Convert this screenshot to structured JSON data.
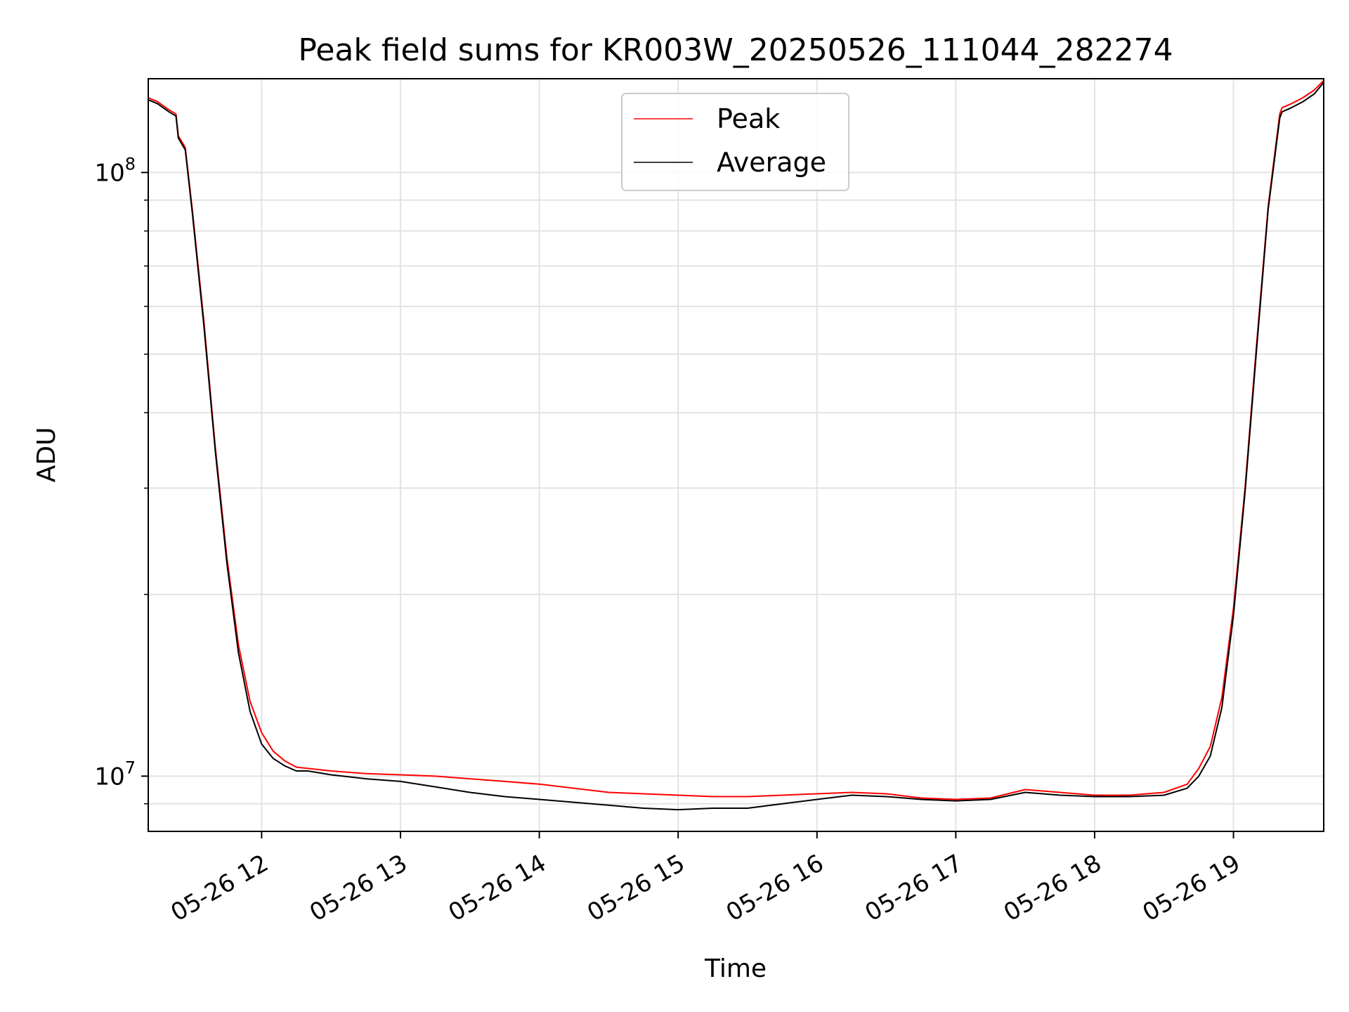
{
  "chart_data": {
    "type": "line",
    "title": "Peak field sums for KR003W_20250526_111044_282274",
    "xlabel": "Time",
    "ylabel": "ADU",
    "y_scale": "log",
    "ylim": [
      8100000,
      143000000
    ],
    "x_start": "2025-05-26 11:11",
    "x_end": "2025-05-26 19:39",
    "x_tick_labels": [
      "05-26 12",
      "05-26 13",
      "05-26 14",
      "05-26 15",
      "05-26 16",
      "05-26 17",
      "05-26 18",
      "05-26 19"
    ],
    "x_tick_times": [
      "2025-05-26 12:00",
      "2025-05-26 13:00",
      "2025-05-26 14:00",
      "2025-05-26 15:00",
      "2025-05-26 16:00",
      "2025-05-26 17:00",
      "2025-05-26 18:00",
      "2025-05-26 19:00"
    ],
    "y_tick_labels": [
      {
        "value": 10000000,
        "base": "10",
        "exp": "7"
      },
      {
        "value": 100000000,
        "base": "10",
        "exp": "8"
      }
    ],
    "grid": true,
    "legend_position": "top-center",
    "series": [
      {
        "name": "Peak",
        "color": "#ff0000",
        "x": [
          "11:11",
          "11:15",
          "11:20",
          "11:23",
          "11:24",
          "11:27",
          "11:30",
          "11:35",
          "11:40",
          "11:45",
          "11:50",
          "11:55",
          "12:00",
          "12:05",
          "12:10",
          "12:15",
          "12:20",
          "12:30",
          "12:45",
          "13:00",
          "13:15",
          "13:30",
          "13:45",
          "14:00",
          "14:15",
          "14:30",
          "14:45",
          "15:00",
          "15:15",
          "15:30",
          "15:45",
          "16:00",
          "16:15",
          "16:30",
          "16:45",
          "17:00",
          "17:15",
          "17:30",
          "17:45",
          "18:00",
          "18:15",
          "18:30",
          "18:40",
          "18:45",
          "18:50",
          "18:55",
          "19:00",
          "19:05",
          "19:10",
          "19:15",
          "19:20",
          "19:21",
          "19:25",
          "19:30",
          "19:35",
          "19:39"
        ],
        "y": [
          133000000,
          131000000,
          127000000,
          125000000,
          115000000,
          110000000,
          87000000,
          57000000,
          35000000,
          23000000,
          16500000,
          13300000,
          11800000,
          11000000,
          10600000,
          10350000,
          10300000,
          10200000,
          10100000,
          10050000,
          10000000,
          9900000,
          9800000,
          9700000,
          9550000,
          9400000,
          9350000,
          9300000,
          9250000,
          9250000,
          9300000,
          9350000,
          9400000,
          9350000,
          9200000,
          9150000,
          9200000,
          9500000,
          9400000,
          9300000,
          9300000,
          9400000,
          9700000,
          10300000,
          11200000,
          13500000,
          19000000,
          30000000,
          52000000,
          88000000,
          125000000,
          128000000,
          130000000,
          133000000,
          137000000,
          142000000
        ]
      },
      {
        "name": "Average",
        "color": "#000000",
        "x": [
          "11:11",
          "11:15",
          "11:20",
          "11:23",
          "11:24",
          "11:27",
          "11:30",
          "11:35",
          "11:40",
          "11:45",
          "11:50",
          "11:55",
          "12:00",
          "12:05",
          "12:10",
          "12:15",
          "12:20",
          "12:30",
          "12:45",
          "13:00",
          "13:15",
          "13:30",
          "13:45",
          "14:00",
          "14:15",
          "14:30",
          "14:45",
          "15:00",
          "15:15",
          "15:30",
          "15:45",
          "16:00",
          "16:15",
          "16:30",
          "16:45",
          "17:00",
          "17:15",
          "17:30",
          "17:45",
          "18:00",
          "18:15",
          "18:30",
          "18:40",
          "18:45",
          "18:50",
          "18:55",
          "19:00",
          "19:05",
          "19:10",
          "19:15",
          "19:20",
          "19:21",
          "19:25",
          "19:30",
          "19:35",
          "19:39"
        ],
        "y": [
          132000000,
          130000000,
          126000000,
          124000000,
          114000000,
          109000000,
          86000000,
          56000000,
          34500000,
          22500000,
          16000000,
          12800000,
          11300000,
          10700000,
          10400000,
          10200000,
          10200000,
          10050000,
          9900000,
          9800000,
          9600000,
          9400000,
          9250000,
          9150000,
          9050000,
          8950000,
          8850000,
          8800000,
          8850000,
          8850000,
          9000000,
          9150000,
          9300000,
          9250000,
          9150000,
          9100000,
          9150000,
          9400000,
          9300000,
          9250000,
          9250000,
          9300000,
          9550000,
          10000000,
          10800000,
          13000000,
          18500000,
          29500000,
          51000000,
          87000000,
          123000000,
          126000000,
          128000000,
          131000000,
          135000000,
          141000000
        ]
      }
    ]
  }
}
